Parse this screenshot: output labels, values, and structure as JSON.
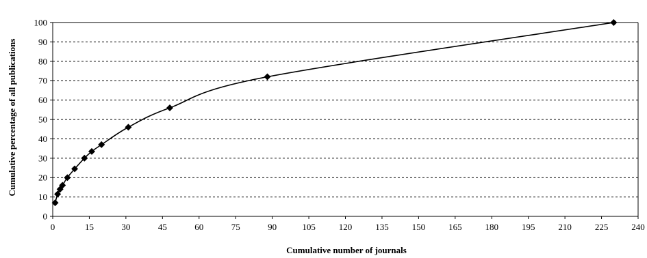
{
  "chart_data": {
    "type": "line",
    "xlabel": "Cumulative number of journals",
    "ylabel": "Cumulative percentage of all publications",
    "xlim": [
      0,
      240
    ],
    "ylim": [
      0,
      100
    ],
    "x_ticks": [
      "0",
      "15",
      "30",
      "45",
      "60",
      "75",
      "90",
      "105",
      "120",
      "135",
      "150",
      "165",
      "180",
      "195",
      "210",
      "225",
      "240"
    ],
    "y_ticks": [
      "0",
      "10",
      "20",
      "30",
      "40",
      "50",
      "60",
      "70",
      "80",
      "90",
      "100"
    ],
    "grid": "horizontal dashed",
    "legend": "none",
    "marker": "diamond",
    "series": [
      {
        "color": "#000000",
        "points": [
          {
            "x": 1,
            "y": 7
          },
          {
            "x": 2,
            "y": 11.5
          },
          {
            "x": 3,
            "y": 14
          },
          {
            "x": 4,
            "y": 16
          },
          {
            "x": 6,
            "y": 20
          },
          {
            "x": 9,
            "y": 24.5
          },
          {
            "x": 13,
            "y": 30
          },
          {
            "x": 16,
            "y": 33.5
          },
          {
            "x": 20,
            "y": 37
          },
          {
            "x": 31,
            "y": 46
          },
          {
            "x": 48,
            "y": 56
          },
          {
            "x": 88,
            "y": 72
          },
          {
            "x": 230,
            "y": 100
          }
        ]
      }
    ]
  }
}
